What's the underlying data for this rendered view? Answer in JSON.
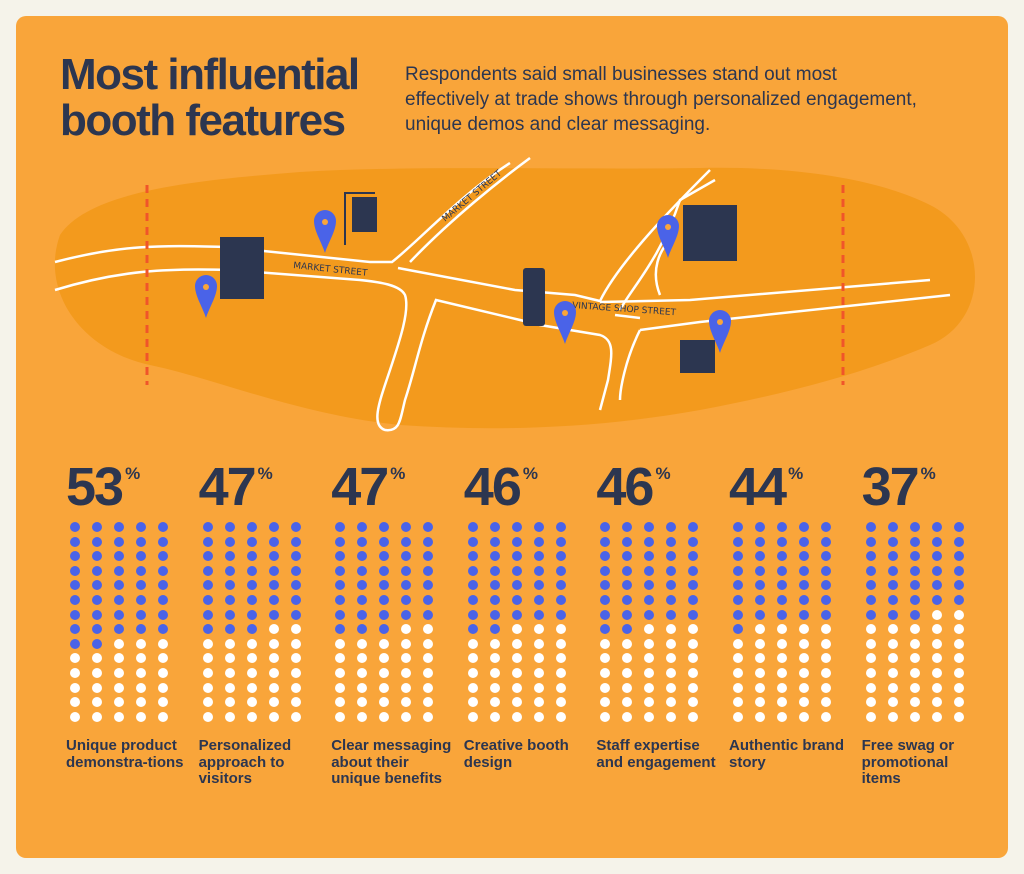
{
  "header": {
    "title_line1": "Most influential",
    "title_line2": "booth features",
    "description": "Respondents said small businesses stand out most effectively at trade shows through personalized engagement, unique demos and clear messaging."
  },
  "map": {
    "street_labels": [
      "MARKET STREET",
      "MARKET STREET",
      "VINTAGE SHOP STREET"
    ]
  },
  "colors": {
    "background": "#f9a53a",
    "map_blob": "#f39a1d",
    "navy": "#2c3650",
    "blue_dot": "#4a63e8",
    "white_dot": "#ffffff",
    "dashes": "#f0552a"
  },
  "chart_data": {
    "type": "dot-matrix",
    "grid": {
      "columns": 5,
      "rows": 14
    },
    "categories": [
      "Unique product demonstra-tions",
      "Personalized approach to visitors",
      "Clear messaging about their unique benefits",
      "Creative booth design",
      "Staff expertise and engagement",
      "Authentic brand story",
      "Free swag or promotional items"
    ],
    "values": [
      53,
      47,
      47,
      46,
      46,
      44,
      37
    ],
    "unit": "%",
    "filled_dots": [
      42,
      38,
      38,
      37,
      37,
      36,
      33
    ]
  }
}
